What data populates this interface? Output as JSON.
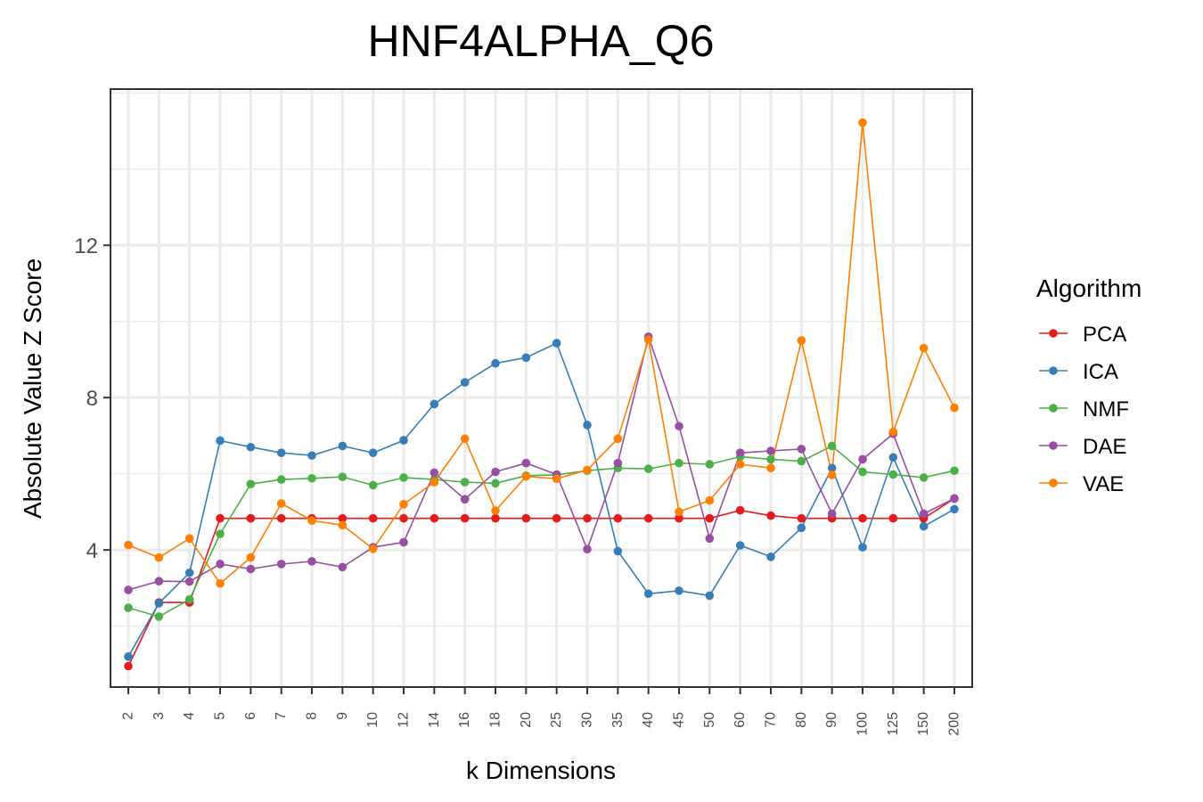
{
  "chart_data": {
    "type": "line",
    "title": "HNF4ALPHA_Q6",
    "xlabel": "k Dimensions",
    "ylabel": "Absolute Value Z Score",
    "categories": [
      "2",
      "3",
      "4",
      "5",
      "6",
      "7",
      "8",
      "9",
      "10",
      "12",
      "14",
      "16",
      "18",
      "20",
      "25",
      "30",
      "35",
      "40",
      "45",
      "50",
      "60",
      "70",
      "80",
      "90",
      "100",
      "125",
      "150",
      "200"
    ],
    "ylim": [
      0.4,
      16.1
    ],
    "yticks": [
      4,
      8,
      12
    ],
    "grid": true,
    "legend": {
      "title": "Algorithm",
      "position": "right"
    },
    "series": [
      {
        "name": "PCA",
        "color": "#e41a1c",
        "values": [
          0.95,
          2.62,
          2.62,
          4.83,
          4.83,
          4.83,
          4.83,
          4.83,
          4.83,
          4.83,
          4.83,
          4.83,
          4.83,
          4.83,
          4.83,
          4.83,
          4.83,
          4.83,
          4.83,
          4.83,
          5.04,
          4.9,
          4.83,
          4.83,
          4.83,
          4.83,
          4.83,
          5.35
        ]
      },
      {
        "name": "ICA",
        "color": "#377eb8",
        "values": [
          1.2,
          2.6,
          3.4,
          6.87,
          6.7,
          6.55,
          6.48,
          6.73,
          6.55,
          6.88,
          7.83,
          8.4,
          8.9,
          9.05,
          9.43,
          7.28,
          3.97,
          2.85,
          2.93,
          2.8,
          4.12,
          3.82,
          4.58,
          6.15,
          4.07,
          6.43,
          4.62,
          5.07
        ]
      },
      {
        "name": "NMF",
        "color": "#4daf4a",
        "values": [
          2.48,
          2.25,
          2.7,
          4.42,
          5.73,
          5.85,
          5.88,
          5.92,
          5.7,
          5.9,
          5.85,
          5.78,
          5.75,
          5.95,
          5.97,
          6.08,
          6.15,
          6.13,
          6.28,
          6.25,
          6.45,
          6.38,
          6.33,
          6.73,
          6.05,
          5.98,
          5.9,
          6.08
        ]
      },
      {
        "name": "DAE",
        "color": "#984ea3",
        "values": [
          2.95,
          3.18,
          3.17,
          3.63,
          3.5,
          3.63,
          3.7,
          3.55,
          4.07,
          4.2,
          6.03,
          5.33,
          6.05,
          6.28,
          5.98,
          4.02,
          6.28,
          9.6,
          7.25,
          4.3,
          6.55,
          6.6,
          6.65,
          4.95,
          6.38,
          7.05,
          4.95,
          5.35
        ]
      },
      {
        "name": "VAE",
        "color": "#ff7f00",
        "values": [
          4.13,
          3.8,
          4.3,
          3.12,
          3.8,
          5.22,
          4.77,
          4.65,
          4.03,
          5.2,
          5.78,
          6.92,
          5.03,
          5.93,
          5.87,
          6.1,
          6.92,
          9.52,
          5.0,
          5.3,
          6.25,
          6.15,
          9.5,
          5.97,
          15.22,
          7.1,
          9.3,
          7.73
        ]
      }
    ]
  }
}
